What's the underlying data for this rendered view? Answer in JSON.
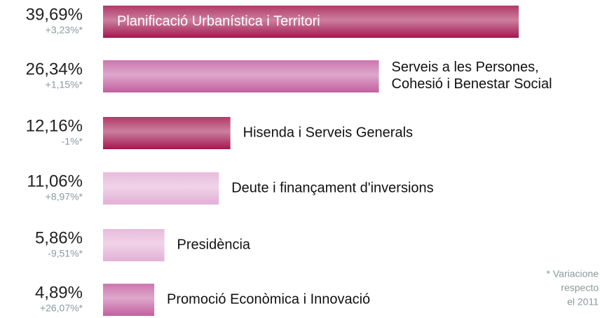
{
  "chart_data": {
    "type": "bar",
    "orientation": "horizontal",
    "categories": [
      "Planificació Urbanística i Territori",
      "Serveis a les Persones,\nCohesió i Benestar Social",
      "Hisenda i Serveis Generals",
      "Deute i finançament d'inversions",
      "Presidència",
      "Promoció Econòmica i Innovació"
    ],
    "values": [
      39.69,
      26.34,
      12.16,
      11.06,
      5.86,
      4.89
    ],
    "value_labels": [
      "39,69%",
      "26,34%",
      "12,16%",
      "11,06%",
      "5,86%",
      "4,89%"
    ],
    "changes": [
      "+3,23%*",
      "+1,15%*",
      "-1%*",
      "+8,97%*",
      "-9,51%*",
      "+26,07%*"
    ],
    "colors": [
      "#a3174f",
      "#c35fa0",
      "#a3174f",
      "#e4afd6",
      "#e4afd6",
      "#c35fa0"
    ],
    "footnote": [
      "* Variacione",
      "respecto",
      "el 2011"
    ]
  }
}
